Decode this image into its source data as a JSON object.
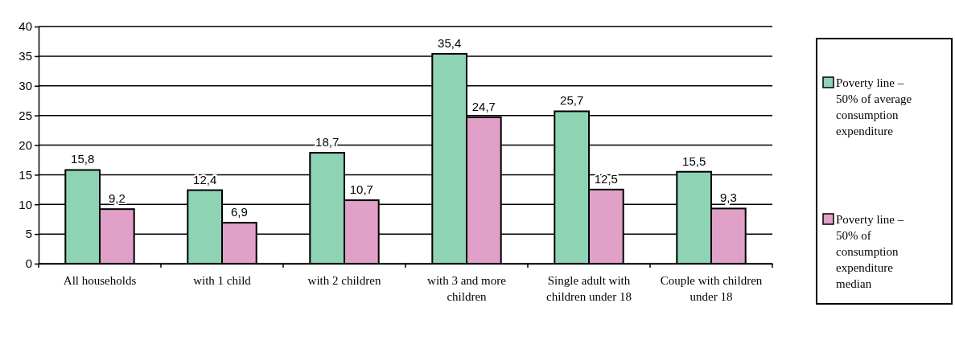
{
  "chart_data": {
    "type": "bar",
    "categories": [
      "All households",
      "with 1 child",
      "with 2 children",
      "with 3 and more children",
      "Single adult with children under 18",
      "Couple with children under 18"
    ],
    "series": [
      {
        "name": "Poverty line – 50% of average consumption expenditure",
        "color": "#8fd3b5",
        "values": [
          15.8,
          12.4,
          18.7,
          35.4,
          25.7,
          15.5
        ],
        "value_labels": [
          "15,8",
          "12,4",
          "18,7",
          "35,4",
          "25,7",
          "15,5"
        ]
      },
      {
        "name": "Poverty line – 50% of consumption expenditure median",
        "color": "#e0a0c8",
        "values": [
          9.2,
          6.9,
          10.7,
          24.7,
          12.5,
          9.3
        ],
        "value_labels": [
          "9,2",
          "6,9",
          "10,7",
          "24,7",
          "12,5",
          "9,3"
        ]
      }
    ],
    "ylim": [
      0,
      40
    ],
    "yticks": [
      0,
      5,
      10,
      15,
      20,
      25,
      30,
      35,
      40
    ],
    "grid": "y",
    "legend": "right"
  }
}
